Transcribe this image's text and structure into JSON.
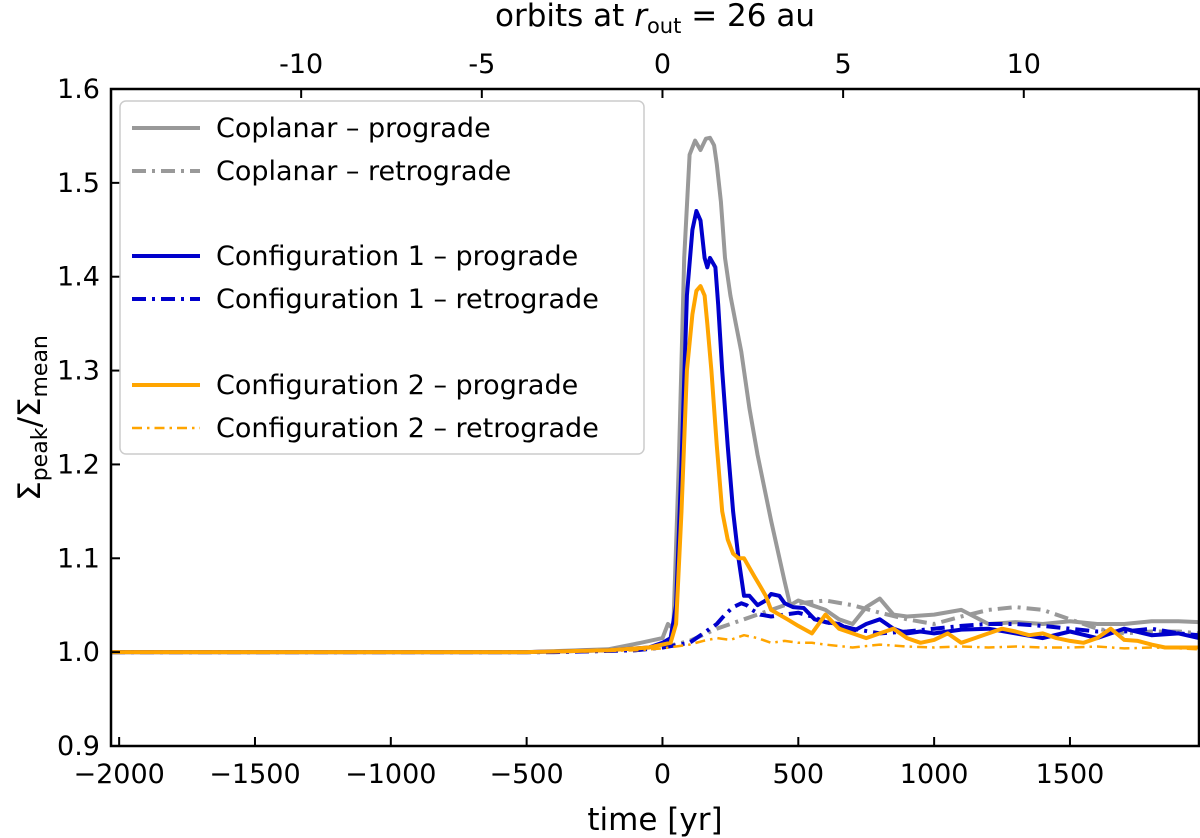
{
  "chart_data": {
    "type": "line",
    "title": "",
    "xlabel": "time [yr]",
    "ylabel": "Σpeak/Σmean",
    "ylabel_parts": {
      "sigma1": "Σ",
      "sub1": "peak",
      "slash": "/",
      "sigma2": "Σ",
      "sub2": "mean"
    },
    "top_xlabel": "orbits at r_out = 26 au",
    "top_xlabel_parts": {
      "pre": "orbits at ",
      "r": "r",
      "sub": "out",
      "post": " = 26 au"
    },
    "xlim": [
      -2030,
      1975
    ],
    "ylim": [
      0.9,
      1.6
    ],
    "xticks": [
      -2000,
      -1500,
      -1000,
      -500,
      0,
      500,
      1000,
      1500
    ],
    "xtick_labels": [
      "−2000",
      "−1500",
      "−1000",
      "−500",
      "0",
      "500",
      "1000",
      "1500"
    ],
    "yticks": [
      0.9,
      1.0,
      1.1,
      1.2,
      1.3,
      1.4,
      1.5,
      1.6
    ],
    "ytick_labels": [
      "0.9",
      "1.0",
      "1.1",
      "1.2",
      "1.3",
      "1.4",
      "1.5",
      "1.6"
    ],
    "top_xticks_years": [
      -1330,
      -665,
      0,
      665,
      1330
    ],
    "top_xtick_labels": [
      "-10",
      "-5",
      "0",
      "5",
      "10"
    ],
    "legend_position": "upper-left",
    "series": [
      {
        "name": "Coplanar – prograde",
        "color": "#999999",
        "style": "solid",
        "width": 4,
        "x": [
          -2030,
          -500,
          -200,
          -80,
          0,
          20,
          40,
          60,
          80,
          100,
          120,
          140,
          160,
          175,
          190,
          200,
          215,
          230,
          250,
          270,
          290,
          300,
          320,
          350,
          400,
          450,
          470,
          500,
          550,
          600,
          650,
          700,
          750,
          800,
          850,
          900,
          1000,
          1100,
          1200,
          1300,
          1400,
          1500,
          1600,
          1700,
          1800,
          1900,
          1975
        ],
        "y": [
          1.0,
          1.0,
          1.003,
          1.01,
          1.015,
          1.03,
          1.025,
          1.2,
          1.42,
          1.53,
          1.545,
          1.535,
          1.547,
          1.548,
          1.54,
          1.52,
          1.48,
          1.42,
          1.38,
          1.35,
          1.32,
          1.3,
          1.26,
          1.21,
          1.14,
          1.075,
          1.05,
          1.055,
          1.05,
          1.045,
          1.035,
          1.03,
          1.048,
          1.057,
          1.04,
          1.038,
          1.04,
          1.045,
          1.03,
          1.032,
          1.03,
          1.033,
          1.03,
          1.03,
          1.033,
          1.033,
          1.032
        ]
      },
      {
        "name": "Coplanar – retrograde",
        "color": "#999999",
        "style": "dashdot",
        "width": 4,
        "x": [
          -2030,
          -400,
          -100,
          0,
          100,
          200,
          300,
          400,
          450,
          500,
          600,
          700,
          800,
          900,
          1000,
          1100,
          1200,
          1300,
          1400,
          1500,
          1600,
          1700,
          1800,
          1900,
          1975
        ],
        "y": [
          1.0,
          1.0,
          1.002,
          1.005,
          1.012,
          1.025,
          1.035,
          1.045,
          1.05,
          1.052,
          1.055,
          1.05,
          1.042,
          1.035,
          1.03,
          1.038,
          1.045,
          1.048,
          1.045,
          1.035,
          1.025,
          1.02,
          1.022,
          1.022,
          1.02
        ]
      },
      {
        "name": "Configuration 1 – prograde",
        "color": "#0000cc",
        "style": "solid",
        "width": 4,
        "x": [
          -2030,
          -500,
          -200,
          -50,
          0,
          30,
          50,
          70,
          90,
          110,
          125,
          140,
          155,
          165,
          175,
          185,
          195,
          205,
          220,
          240,
          260,
          280,
          300,
          320,
          350,
          380,
          400,
          430,
          450,
          480,
          520,
          560,
          600,
          650,
          700,
          750,
          800,
          850,
          900,
          950,
          1000,
          1100,
          1200,
          1300,
          1400,
          1500,
          1600,
          1700,
          1800,
          1900,
          1975
        ],
        "y": [
          1.0,
          1.0,
          1.002,
          1.005,
          1.01,
          1.015,
          1.05,
          1.2,
          1.38,
          1.45,
          1.47,
          1.46,
          1.42,
          1.41,
          1.42,
          1.415,
          1.41,
          1.37,
          1.3,
          1.22,
          1.15,
          1.1,
          1.06,
          1.06,
          1.05,
          1.055,
          1.062,
          1.06,
          1.052,
          1.048,
          1.047,
          1.035,
          1.032,
          1.03,
          1.022,
          1.03,
          1.035,
          1.025,
          1.02,
          1.022,
          1.02,
          1.024,
          1.025,
          1.02,
          1.015,
          1.022,
          1.015,
          1.025,
          1.018,
          1.02,
          1.015
        ]
      },
      {
        "name": "Configuration 1 – retrograde",
        "color": "#0000cc",
        "style": "dashdot",
        "width": 4,
        "x": [
          -2030,
          -400,
          -100,
          0,
          100,
          150,
          200,
          230,
          260,
          290,
          310,
          330,
          360,
          400,
          450,
          500,
          550,
          600,
          700,
          800,
          900,
          1000,
          1100,
          1200,
          1300,
          1400,
          1500,
          1600,
          1700,
          1800,
          1900,
          1975
        ],
        "y": [
          1.0,
          1.0,
          1.002,
          1.005,
          1.01,
          1.02,
          1.03,
          1.04,
          1.048,
          1.052,
          1.05,
          1.045,
          1.04,
          1.038,
          1.04,
          1.042,
          1.038,
          1.032,
          1.025,
          1.02,
          1.022,
          1.025,
          1.028,
          1.03,
          1.03,
          1.028,
          1.025,
          1.022,
          1.022,
          1.025,
          1.02,
          1.018
        ]
      },
      {
        "name": "Configuration 2 – prograde",
        "color": "#ffa500",
        "style": "solid",
        "width": 4,
        "x": [
          -2030,
          -500,
          -200,
          -50,
          0,
          30,
          50,
          70,
          90,
          110,
          125,
          140,
          155,
          165,
          180,
          200,
          220,
          240,
          260,
          280,
          300,
          320,
          340,
          360,
          380,
          400,
          430,
          460,
          500,
          550,
          600,
          650,
          700,
          750,
          800,
          850,
          900,
          950,
          1000,
          1050,
          1100,
          1150,
          1200,
          1250,
          1300,
          1350,
          1400,
          1450,
          1500,
          1550,
          1600,
          1650,
          1700,
          1750,
          1800,
          1850,
          1900,
          1975
        ],
        "y": [
          1.0,
          1.0,
          1.002,
          1.005,
          1.008,
          1.01,
          1.03,
          1.15,
          1.3,
          1.36,
          1.385,
          1.39,
          1.38,
          1.35,
          1.3,
          1.22,
          1.15,
          1.12,
          1.105,
          1.1,
          1.1,
          1.09,
          1.08,
          1.07,
          1.06,
          1.045,
          1.04,
          1.035,
          1.028,
          1.02,
          1.04,
          1.025,
          1.02,
          1.015,
          1.02,
          1.025,
          1.015,
          1.01,
          1.013,
          1.02,
          1.01,
          1.015,
          1.02,
          1.025,
          1.022,
          1.018,
          1.02,
          1.015,
          1.012,
          1.01,
          1.015,
          1.025,
          1.013,
          1.012,
          1.008,
          1.005,
          1.005,
          1.005
        ]
      },
      {
        "name": "Configuration 2 – retrograde",
        "color": "#ffa500",
        "style": "dashdot",
        "width": 2.5,
        "x": [
          -2030,
          -400,
          -100,
          0,
          100,
          150,
          200,
          250,
          300,
          350,
          400,
          450,
          500,
          550,
          600,
          700,
          800,
          900,
          1000,
          1100,
          1200,
          1300,
          1400,
          1500,
          1600,
          1700,
          1800,
          1900,
          1975
        ],
        "y": [
          1.0,
          1.0,
          1.002,
          1.004,
          1.008,
          1.012,
          1.015,
          1.013,
          1.018,
          1.015,
          1.01,
          1.012,
          1.01,
          1.01,
          1.008,
          1.005,
          1.008,
          1.006,
          1.005,
          1.006,
          1.005,
          1.006,
          1.005,
          1.005,
          1.006,
          1.004,
          1.005,
          1.004,
          1.003
        ]
      }
    ]
  }
}
